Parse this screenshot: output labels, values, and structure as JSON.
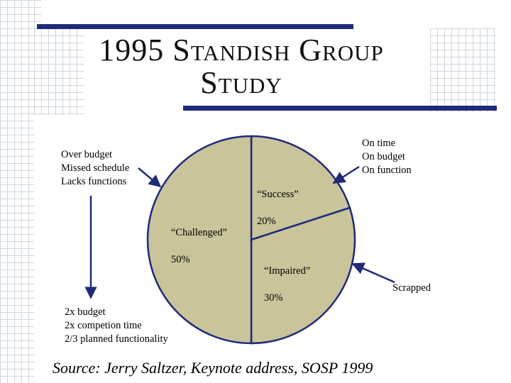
{
  "slide": {
    "title_line1": "1995 Standish Group",
    "title_line2": "Study",
    "source": "Source: Jerry Saltzer, Keynote address, SOSP 1999"
  },
  "annotations": {
    "over_budget": "Over budget\nMissed schedule\nLacks functions",
    "on_time": "On time\nOn budget\nOn function",
    "scrapped": "Scrapped",
    "doubling": "2x budget\n2x competion time\n2/3 planned functionality"
  },
  "colors": {
    "pie_fill": "#c9c49a",
    "rule": "#1f2a78"
  },
  "chart_data": {
    "type": "pie",
    "slices": [
      {
        "label": "“Success”",
        "percent_label": "20%",
        "value": 20
      },
      {
        "label": "“Impaired”",
        "percent_label": "30%",
        "value": 30
      },
      {
        "label": "“Challenged”",
        "percent_label": "50%",
        "value": 50
      }
    ],
    "start_angle_deg": 0,
    "direction": "clockwise"
  }
}
